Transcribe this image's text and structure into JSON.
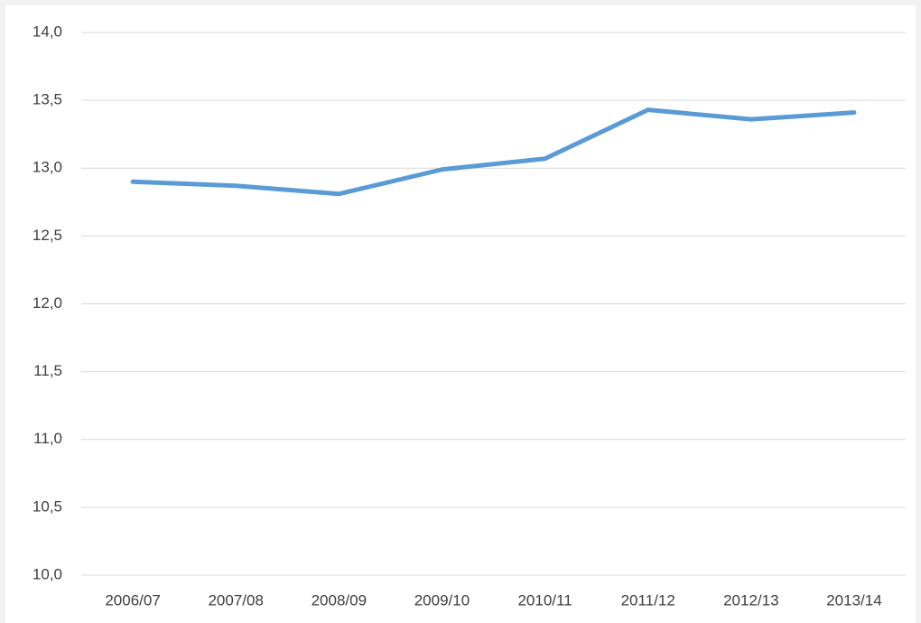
{
  "chart_data": {
    "type": "line",
    "categories": [
      "2006/07",
      "2007/08",
      "2008/09",
      "2009/10",
      "2010/11",
      "2011/12",
      "2012/13",
      "2013/14"
    ],
    "series": [
      {
        "color": "#5b9bd5",
        "values": [
          12.9,
          12.87,
          12.81,
          12.99,
          13.07,
          13.43,
          13.36,
          13.41
        ]
      }
    ],
    "ylim": [
      10,
      14
    ],
    "yticks": [
      {
        "value": 10,
        "label": "10,0"
      },
      {
        "value": 10.5,
        "label": "10,5"
      },
      {
        "value": 11,
        "label": "11,0"
      },
      {
        "value": 11.5,
        "label": "11,5"
      },
      {
        "value": 12,
        "label": "12,0"
      },
      {
        "value": 12.5,
        "label": "12,5"
      },
      {
        "value": 13,
        "label": "13,0"
      },
      {
        "value": 13.5,
        "label": "13,5"
      },
      {
        "value": 14,
        "label": "14,0"
      }
    ],
    "grid": true
  }
}
